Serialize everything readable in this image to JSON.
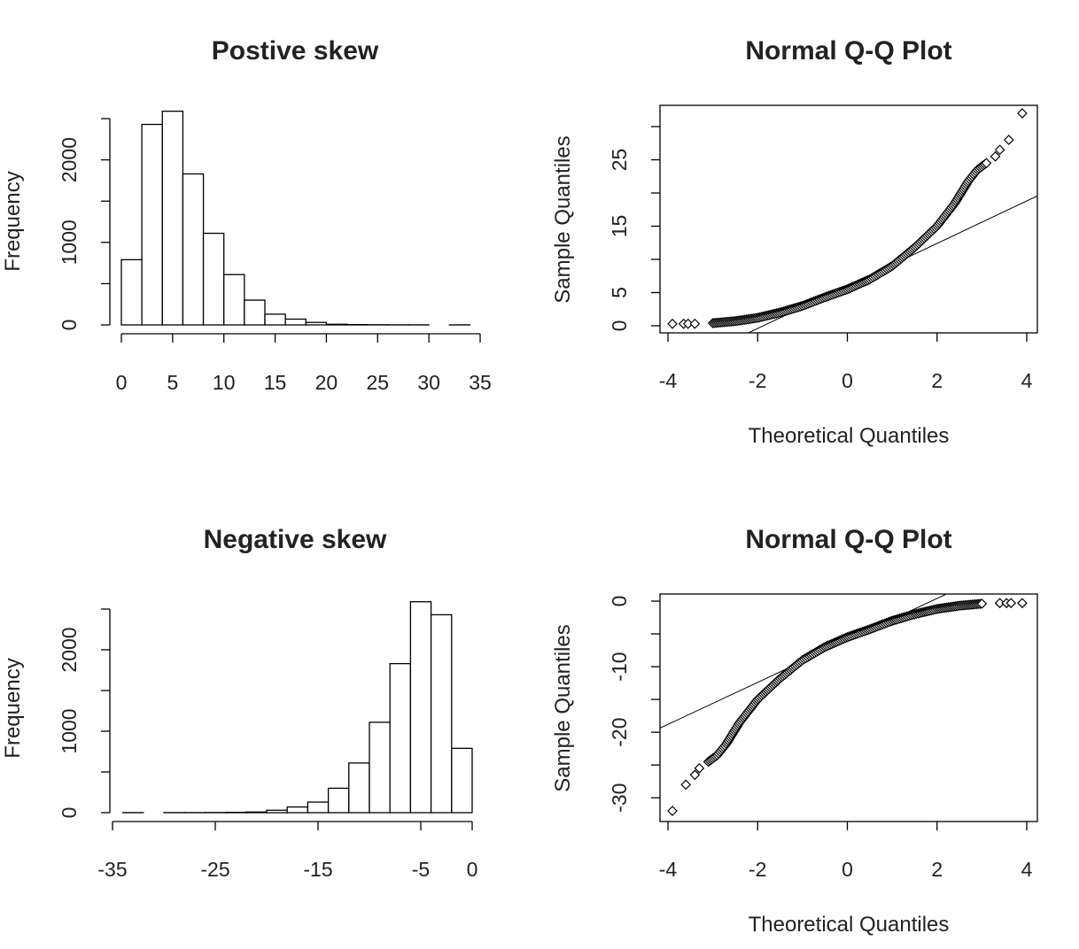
{
  "chart_data": [
    {
      "type": "bar",
      "title": "Postive skew",
      "xlabel": "",
      "ylabel": "Frequency",
      "xlim": [
        0,
        35
      ],
      "ylim": [
        0,
        2500
      ],
      "xticks": [
        "0",
        "5",
        "10",
        "15",
        "20",
        "25",
        "30",
        "35"
      ],
      "yticks": [
        "0",
        "1000",
        "2000"
      ],
      "bins": [
        [
          0,
          2
        ],
        [
          2,
          4
        ],
        [
          4,
          6
        ],
        [
          6,
          8
        ],
        [
          8,
          10
        ],
        [
          10,
          12
        ],
        [
          12,
          14
        ],
        [
          14,
          16
        ],
        [
          16,
          18
        ],
        [
          18,
          20
        ],
        [
          20,
          22
        ],
        [
          22,
          24
        ],
        [
          24,
          26
        ],
        [
          26,
          28
        ],
        [
          28,
          30
        ],
        [
          30,
          32
        ],
        [
          32,
          34
        ]
      ],
      "values": [
        790,
        2430,
        2590,
        1830,
        1110,
        610,
        300,
        130,
        70,
        30,
        8,
        4,
        2,
        1,
        1,
        0,
        1
      ]
    },
    {
      "type": "scatter",
      "title": "Normal Q-Q Plot",
      "xlabel": "Theoretical Quantiles",
      "ylabel": "Sample Quantiles",
      "xlim": [
        -4,
        4
      ],
      "ylim": [
        0,
        32
      ],
      "xticks": [
        "-4",
        "-2",
        "0",
        "2",
        "4"
      ],
      "yticks": [
        "0",
        "5",
        "15",
        "25"
      ],
      "reference_line": {
        "intercept": 6.0,
        "slope": 3.2
      },
      "points": [
        [
          -3.9,
          0.3
        ],
        [
          -3.65,
          0.3
        ],
        [
          -3.55,
          0.3
        ],
        [
          -3.4,
          0.3
        ],
        [
          -3.0,
          0.4
        ],
        [
          -2.5,
          0.7
        ],
        [
          -2.0,
          1.2
        ],
        [
          -1.5,
          2.0
        ],
        [
          -1.0,
          3.0
        ],
        [
          -0.5,
          4.3
        ],
        [
          0.0,
          5.5
        ],
        [
          0.5,
          7.0
        ],
        [
          1.0,
          9.0
        ],
        [
          1.5,
          11.8
        ],
        [
          2.0,
          15.0
        ],
        [
          2.4,
          18.5
        ],
        [
          2.7,
          21.8
        ],
        [
          2.9,
          23.5
        ],
        [
          3.1,
          24.5
        ],
        [
          3.3,
          25.5
        ],
        [
          3.4,
          26.5
        ],
        [
          3.6,
          28.0
        ],
        [
          3.9,
          32.0
        ]
      ]
    },
    {
      "type": "bar",
      "title": "Negative skew",
      "xlabel": "",
      "ylabel": "Frequency",
      "xlim": [
        -35,
        0
      ],
      "ylim": [
        0,
        2500
      ],
      "xticks": [
        "-35",
        "-25",
        "-15",
        "-5",
        "0"
      ],
      "yticks": [
        "0",
        "1000",
        "2000"
      ],
      "bins": [
        [
          -34,
          -32
        ],
        [
          -32,
          -30
        ],
        [
          -30,
          -28
        ],
        [
          -28,
          -26
        ],
        [
          -26,
          -24
        ],
        [
          -24,
          -22
        ],
        [
          -22,
          -20
        ],
        [
          -20,
          -18
        ],
        [
          -18,
          -16
        ],
        [
          -16,
          -14
        ],
        [
          -14,
          -12
        ],
        [
          -12,
          -10
        ],
        [
          -10,
          -8
        ],
        [
          -8,
          -6
        ],
        [
          -6,
          -4
        ],
        [
          -4,
          -2
        ],
        [
          -2,
          0
        ]
      ],
      "values": [
        1,
        0,
        1,
        1,
        2,
        4,
        8,
        30,
        70,
        130,
        300,
        610,
        1110,
        1830,
        2590,
        2430,
        790
      ]
    },
    {
      "type": "scatter",
      "title": "Normal Q-Q Plot",
      "xlabel": "Theoretical Quantiles",
      "ylabel": "Sample Quantiles",
      "xlim": [
        -4,
        4
      ],
      "ylim": [
        -32,
        0
      ],
      "xticks": [
        "-4",
        "-2",
        "0",
        "2",
        "4"
      ],
      "yticks": [
        "0",
        "-10",
        "-20",
        "-30"
      ],
      "reference_line": {
        "intercept": -6.0,
        "slope": 3.2
      },
      "points": [
        [
          -3.9,
          -32.0
        ],
        [
          -3.6,
          -28.0
        ],
        [
          -3.4,
          -26.5
        ],
        [
          -3.3,
          -25.5
        ],
        [
          -3.1,
          -24.5
        ],
        [
          -2.9,
          -23.5
        ],
        [
          -2.7,
          -21.8
        ],
        [
          -2.4,
          -18.5
        ],
        [
          -2.0,
          -15.0
        ],
        [
          -1.5,
          -11.8
        ],
        [
          -1.0,
          -9.0
        ],
        [
          -0.5,
          -7.0
        ],
        [
          0.0,
          -5.5
        ],
        [
          0.5,
          -4.3
        ],
        [
          1.0,
          -3.0
        ],
        [
          1.5,
          -2.0
        ],
        [
          2.0,
          -1.2
        ],
        [
          2.5,
          -0.7
        ],
        [
          3.0,
          -0.4
        ],
        [
          3.4,
          -0.3
        ],
        [
          3.55,
          -0.3
        ],
        [
          3.65,
          -0.3
        ],
        [
          3.9,
          -0.3
        ]
      ]
    }
  ]
}
